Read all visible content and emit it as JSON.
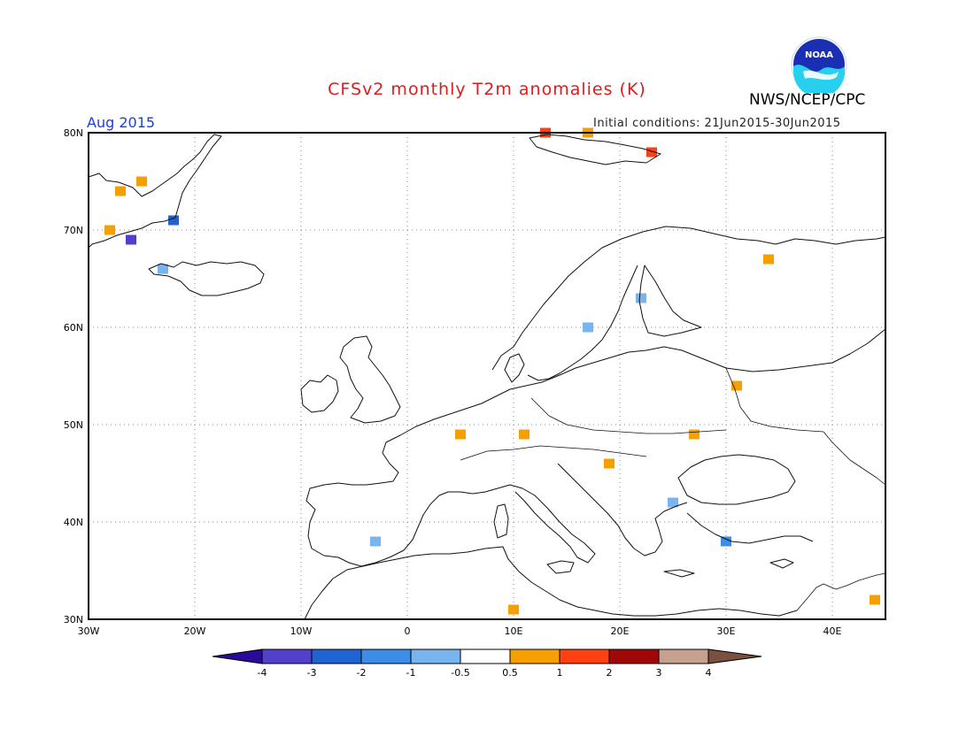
{
  "header": {
    "title": "CFSv2 monthly T2m anomalies (K)",
    "organization": "NWS/NCEP/CPC",
    "logo_text": "NOAA",
    "month": "Aug 2015",
    "initial_conditions": "Initial conditions: 21Jun2015-30Jun2015"
  },
  "map": {
    "lon_range": [
      -30,
      45
    ],
    "lat_range": [
      30,
      80
    ],
    "lat_labels": [
      "80N",
      "70N",
      "60N",
      "50N",
      "40N",
      "30N"
    ],
    "lon_labels": [
      "30W",
      "20W",
      "10W",
      "0",
      "10E",
      "20E",
      "30E",
      "40E"
    ],
    "grid": "dotted"
  },
  "colorbar": {
    "labels": [
      "-4",
      "-3",
      "-2",
      "-1",
      "-0.5",
      "0.5",
      "1",
      "2",
      "3",
      "4"
    ],
    "colors": [
      "#2a0a9a",
      "#5040cc",
      "#1e64d2",
      "#3c8ce8",
      "#78b4f0",
      "#ffffff",
      "#f5a000",
      "#ff4010",
      "#a00808",
      "#c8a090",
      "#7a5040"
    ]
  },
  "chart_data": {
    "type": "heatmap",
    "title": "CFSv2 monthly T2m anomalies (K)",
    "xlabel": "",
    "ylabel": "",
    "xlim": [
      -30,
      45
    ],
    "ylim": [
      30,
      80
    ],
    "anomaly_cells": [
      {
        "lon": -27,
        "lat": 74,
        "class": "0.5 to 1"
      },
      {
        "lon": -25,
        "lat": 75,
        "class": "0.5 to 1"
      },
      {
        "lon": -28,
        "lat": 70,
        "class": "0.5 to 1"
      },
      {
        "lon": -26,
        "lat": 69,
        "class": "-4 to -3"
      },
      {
        "lon": -22,
        "lat": 71,
        "class": "-3 to -2"
      },
      {
        "lon": -23,
        "lat": 66,
        "class": "-1 to -0.5"
      },
      {
        "lon": 13,
        "lat": 80,
        "class": "1 to 2"
      },
      {
        "lon": 17,
        "lat": 80,
        "class": "0.5 to 1"
      },
      {
        "lon": 23,
        "lat": 78,
        "class": "1 to 2"
      },
      {
        "lon": 34,
        "lat": 67,
        "class": "0.5 to 1"
      },
      {
        "lon": 22,
        "lat": 63,
        "class": "-1 to -0.5"
      },
      {
        "lon": 17,
        "lat": 60,
        "class": "-1 to -0.5"
      },
      {
        "lon": 31,
        "lat": 54,
        "class": "0.5 to 1"
      },
      {
        "lon": 5,
        "lat": 49,
        "class": "0.5 to 1"
      },
      {
        "lon": 11,
        "lat": 49,
        "class": "0.5 to 1"
      },
      {
        "lon": 27,
        "lat": 49,
        "class": "0.5 to 1"
      },
      {
        "lon": 19,
        "lat": 46,
        "class": "0.5 to 1"
      },
      {
        "lon": 25,
        "lat": 42,
        "class": "-1 to -0.5"
      },
      {
        "lon": 30,
        "lat": 38,
        "class": "-2 to -1"
      },
      {
        "lon": -3,
        "lat": 38,
        "class": "-1 to -0.5"
      },
      {
        "lon": 10,
        "lat": 31,
        "class": "0.5 to 1"
      },
      {
        "lon": 44,
        "lat": 32,
        "class": "0.5 to 1"
      }
    ]
  }
}
